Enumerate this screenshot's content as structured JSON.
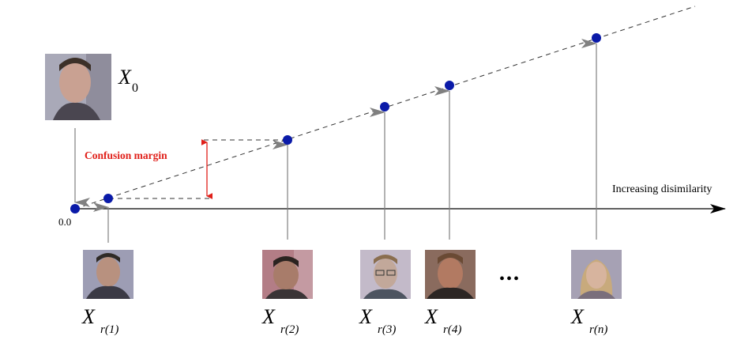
{
  "diagram": {
    "axis_label": "Increasing disimilarity",
    "origin_label": "0.0",
    "margin_label": "Confusion margin",
    "ellipsis": "•••",
    "query": {
      "symbol": "X",
      "subscript": "0"
    },
    "gallery": [
      {
        "symbol": "X",
        "subscript": "r(1)"
      },
      {
        "symbol": "X",
        "subscript": "r(2)"
      },
      {
        "symbol": "X",
        "subscript": "r(3)"
      },
      {
        "symbol": "X",
        "subscript": "r(4)"
      },
      {
        "symbol": "X",
        "subscript": "r(n)"
      }
    ]
  },
  "colors": {
    "point": "#0a1aa8",
    "margin": "#e0201a",
    "arrow": "#808080",
    "axis": "#000000",
    "dashed": "#333333"
  },
  "icons": {
    "face": "face-photo-icon",
    "ellipsis": "ellipsis-icon"
  }
}
